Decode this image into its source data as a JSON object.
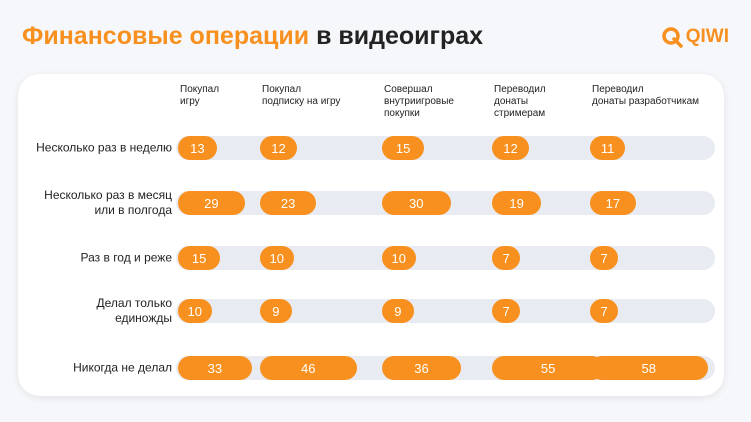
{
  "chart_data": {
    "type": "bar-matrix",
    "title": [
      "Финансовые операции",
      "в видеоиграх"
    ],
    "logo": "QIWI",
    "color": "#f7901e",
    "categories": [
      "Несколько раз в неделю",
      "Несколько раз в месяц\nили в полгода",
      "Раз в год и реже",
      "Делал только\nединожды",
      "Никогда не делал"
    ],
    "series": [
      {
        "name": "Покупал\n игру",
        "values": [
          13,
          29,
          15,
          10,
          33
        ]
      },
      {
        "name": "Покупал\nподписку на игру",
        "values": [
          12,
          23,
          10,
          9,
          46
        ]
      },
      {
        "name": "Совершал\nвнутриигровые\nпокупки",
        "values": [
          15,
          30,
          10,
          9,
          36
        ]
      },
      {
        "name": "Переводил\nдонаты\nстримерам",
        "values": [
          12,
          19,
          7,
          7,
          55
        ]
      },
      {
        "name": "Переводил\nдонаты  разработчикам",
        "values": [
          11,
          17,
          7,
          7,
          58
        ]
      }
    ]
  }
}
